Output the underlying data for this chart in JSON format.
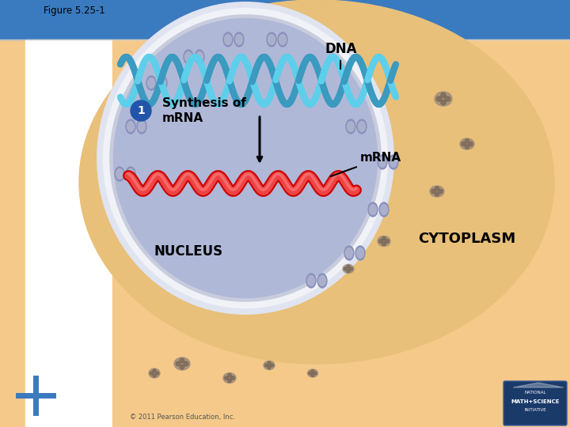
{
  "figure_label": "Figure 5.25-1",
  "title_bg_color": "#3a7abf",
  "bg_color": "#f5c98a",
  "nucleus_fill": "#b0b8d8",
  "dna_color1": "#5ecfea",
  "dna_color2": "#3a9abf",
  "mrna_color_dark": "#cc0000",
  "mrna_color_mid": "#ee4444",
  "mrna_color_light": "#ff8888",
  "label_dna": "DNA",
  "label_mrna": "mRNA",
  "label_synthesis": "Synthesis of\nmRNA",
  "label_nucleus": "NUCLEUS",
  "label_cytoplasm": "CYTOPLASM",
  "copyright": "© 2011 Pearson Education, Inc.",
  "step_num": "1",
  "step_circle_color": "#2255aa",
  "cross_color": "#3a7abf",
  "logo_bg": "#1a3a6a",
  "logo_border": "#3a5a9a"
}
